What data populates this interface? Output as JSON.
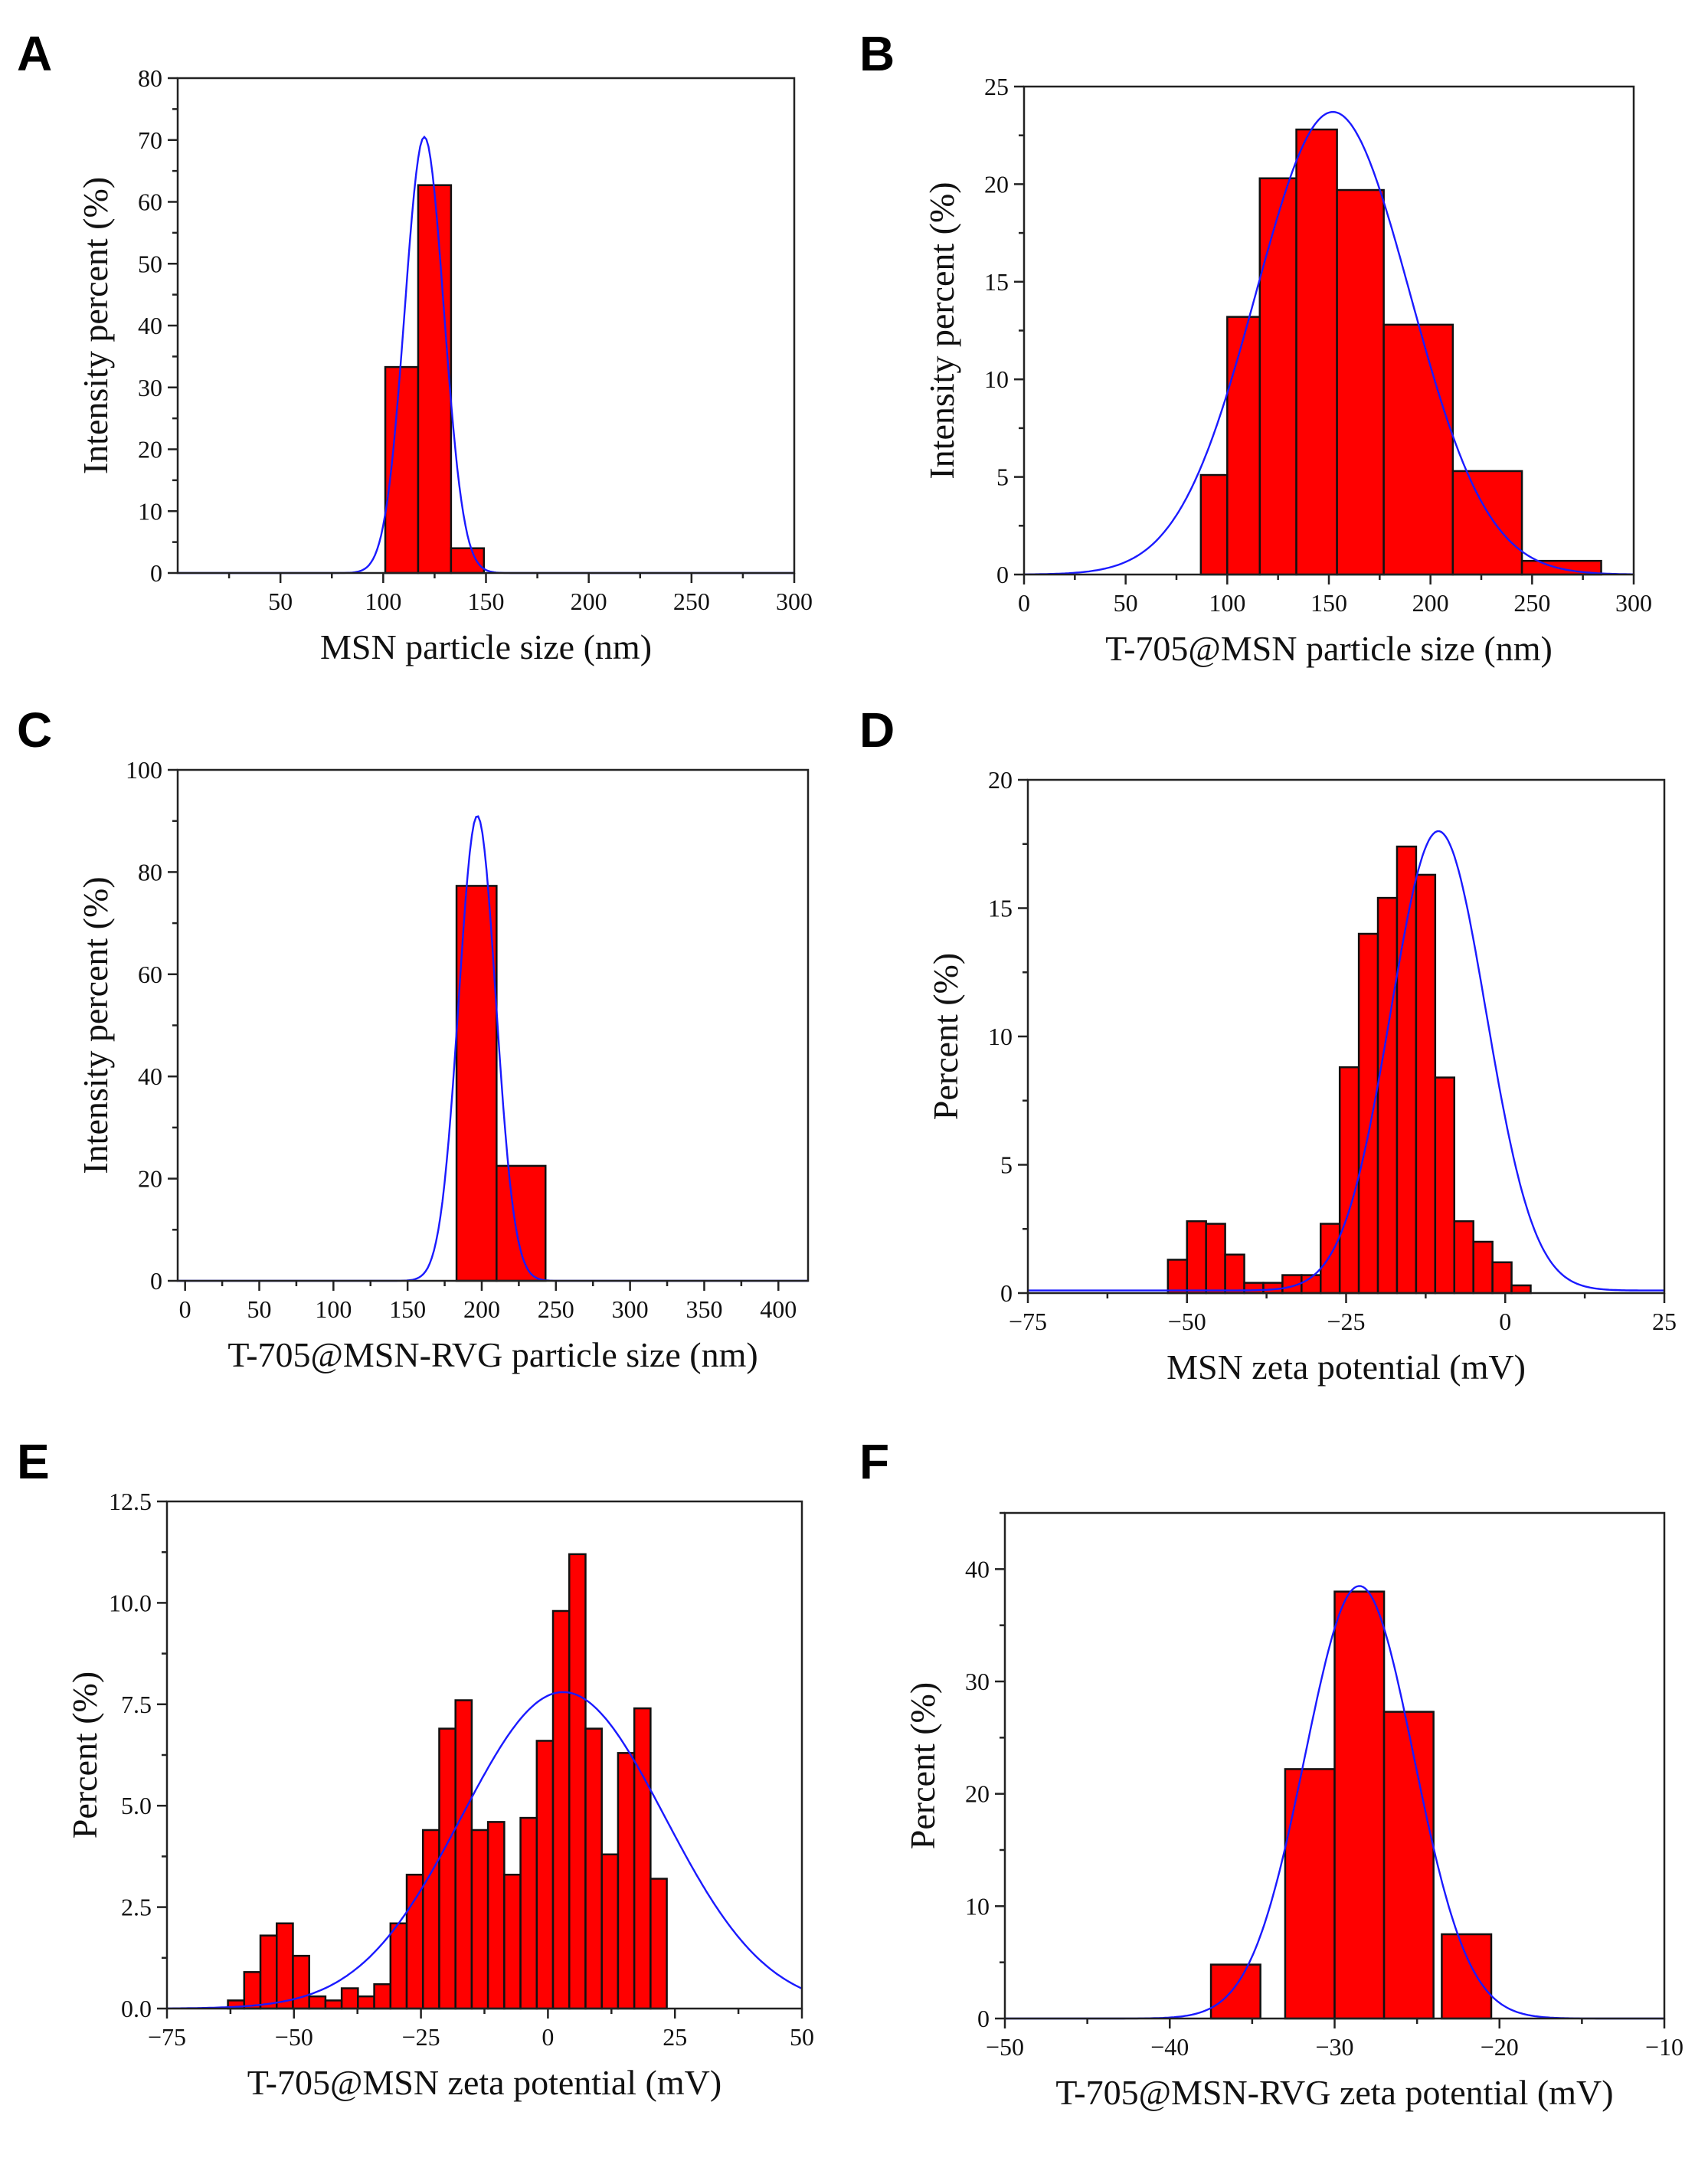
{
  "chart_data": [
    {
      "panel": "A",
      "type": "bar",
      "xlabel": "MSN particle size (nm)",
      "ylabel": "Intensity percent (%)",
      "xlim": [
        0,
        300
      ],
      "ylim": [
        0,
        80
      ],
      "xticks": [
        50,
        100,
        150,
        200,
        250,
        300
      ],
      "xtick_labels": [
        "50",
        "100",
        "150",
        "200",
        "250",
        "300"
      ],
      "yticks": [
        0,
        10,
        20,
        30,
        40,
        50,
        60,
        70,
        80
      ],
      "ytick_labels": [
        "0",
        "10",
        "20",
        "30",
        "40",
        "50",
        "60",
        "70",
        "80"
      ],
      "bars": [
        {
          "x0": 101,
          "x1": 117,
          "value": 33.3
        },
        {
          "x0": 117,
          "x1": 133,
          "value": 62.7
        },
        {
          "x0": 133,
          "x1": 149,
          "value": 4.0
        }
      ],
      "fit": {
        "type": "gaussian",
        "mean": 120,
        "sd": 9.5,
        "amplitude": 70.5
      }
    },
    {
      "panel": "B",
      "type": "bar",
      "xlabel": "T-705@MSN particle size (nm)",
      "ylabel": "Intensity percent (%)",
      "xlim": [
        0,
        300
      ],
      "ylim": [
        0,
        25
      ],
      "xticks": [
        0,
        50,
        100,
        150,
        200,
        250,
        300
      ],
      "xtick_labels": [
        "0",
        "50",
        "100",
        "150",
        "200",
        "250",
        "300"
      ],
      "yticks": [
        0,
        5,
        10,
        15,
        20,
        25
      ],
      "ytick_labels": [
        "0",
        "5",
        "10",
        "15",
        "20",
        "25"
      ],
      "bars": [
        {
          "x0": 87,
          "x1": 100,
          "value": 5.1
        },
        {
          "x0": 100,
          "x1": 116,
          "value": 13.2
        },
        {
          "x0": 116,
          "x1": 134,
          "value": 20.3
        },
        {
          "x0": 134,
          "x1": 154,
          "value": 22.8
        },
        {
          "x0": 154,
          "x1": 177,
          "value": 19.7
        },
        {
          "x0": 177,
          "x1": 211,
          "value": 12.8
        },
        {
          "x0": 211,
          "x1": 245,
          "value": 5.3
        },
        {
          "x0": 245,
          "x1": 284,
          "value": 0.7
        }
      ],
      "fit": {
        "type": "gaussian",
        "mean": 152,
        "sd": 38,
        "amplitude": 23.7
      }
    },
    {
      "panel": "C",
      "type": "bar",
      "xlabel": "T-705@MSN-RVG particle size (nm)",
      "ylabel": "Intensity percent (%)",
      "xlim": [
        -5,
        420
      ],
      "ylim": [
        0,
        100
      ],
      "xticks": [
        0,
        50,
        100,
        150,
        200,
        250,
        300,
        350,
        400
      ],
      "xtick_labels": [
        "0",
        "50",
        "100",
        "150",
        "200",
        "250",
        "300",
        "350",
        "400"
      ],
      "yticks": [
        0,
        20,
        40,
        60,
        80,
        100
      ],
      "ytick_labels": [
        "0",
        "20",
        "40",
        "60",
        "80",
        "100"
      ],
      "bars": [
        {
          "x0": 183,
          "x1": 210,
          "value": 77.3
        },
        {
          "x0": 210,
          "x1": 243,
          "value": 22.5
        }
      ],
      "fit": {
        "type": "gaussian",
        "mean": 197,
        "sd": 12.5,
        "amplitude": 91
      }
    },
    {
      "panel": "D",
      "type": "bar",
      "xlabel": "MSN zeta potential (mV)",
      "ylabel": "Percent (%)",
      "xlim": [
        -75,
        25
      ],
      "ylim": [
        0,
        20
      ],
      "xticks": [
        -75,
        -50,
        -25,
        0,
        25
      ],
      "xtick_labels": [
        "−75",
        "−50",
        "−25",
        "0",
        "25"
      ],
      "yticks": [
        0,
        5,
        10,
        15,
        20
      ],
      "ytick_labels": [
        "0",
        "5",
        "10",
        "15",
        "20"
      ],
      "bin_start": -53,
      "bin_width": 3,
      "values": [
        1.3,
        2.8,
        2.7,
        1.5,
        0.4,
        0.4,
        0.7,
        0.7,
        2.7,
        8.8,
        14.0,
        15.4,
        17.4,
        16.3,
        8.4,
        2.8,
        2.0,
        1.2,
        0.3
      ],
      "fit": {
        "type": "gaussian",
        "mean": -10.5,
        "sd": 7.5,
        "amplitude": 18,
        "baseline": 0.1
      }
    },
    {
      "panel": "E",
      "type": "bar",
      "xlabel": "T-705@MSN zeta potential (mV)",
      "ylabel": "Percent (%)",
      "xlim": [
        -75,
        50
      ],
      "ylim": [
        0,
        12.5
      ],
      "xticks": [
        -75,
        -50,
        -25,
        0,
        25,
        50
      ],
      "xtick_labels": [
        "−75",
        "−50",
        "−25",
        "0",
        "25",
        "50"
      ],
      "yticks": [
        0,
        2.5,
        5,
        7.5,
        10,
        12.5
      ],
      "ytick_labels": [
        "0.0",
        "2.5",
        "5.0",
        "7.5",
        "10.0",
        "12.5"
      ],
      "bin_start": -63,
      "bin_width": 3.2,
      "values": [
        0.2,
        0.9,
        1.8,
        2.1,
        1.3,
        0.3,
        0.2,
        0.5,
        0.3,
        0.6,
        2.1,
        3.3,
        4.4,
        6.9,
        7.6,
        4.4,
        4.6,
        3.3,
        4.7,
        6.6,
        9.8,
        11.2,
        6.9,
        3.8,
        6.3,
        7.4,
        3.2
      ],
      "fit": {
        "type": "gaussian",
        "mean": 3,
        "sd": 20,
        "amplitude": 7.8
      }
    },
    {
      "panel": "F",
      "type": "bar",
      "xlabel": "T-705@MSN-RVG zeta potential (mV)",
      "ylabel": "Percent (%)",
      "xlim": [
        -50,
        -10
      ],
      "ylim": [
        0,
        45
      ],
      "xticks": [
        -50,
        -40,
        -30,
        -20,
        -10
      ],
      "xtick_labels": [
        "−50",
        "−40",
        "−30",
        "−20",
        "−10"
      ],
      "yticks": [
        0,
        10,
        20,
        30,
        40
      ],
      "ytick_labels": [
        "0",
        "10",
        "20",
        "30",
        "40"
      ],
      "bars": [
        {
          "x0": -37.5,
          "x1": -34.5,
          "value": 4.8
        },
        {
          "x0": -33.0,
          "x1": -30.0,
          "value": 22.2
        },
        {
          "x0": -30.0,
          "x1": -27.0,
          "value": 38.0
        },
        {
          "x0": -27.0,
          "x1": -24.0,
          "value": 27.3
        },
        {
          "x0": -23.5,
          "x1": -20.5,
          "value": 7.5
        }
      ],
      "fit": {
        "type": "gaussian",
        "mean": -28.5,
        "sd": 3.3,
        "amplitude": 38.5
      }
    }
  ]
}
